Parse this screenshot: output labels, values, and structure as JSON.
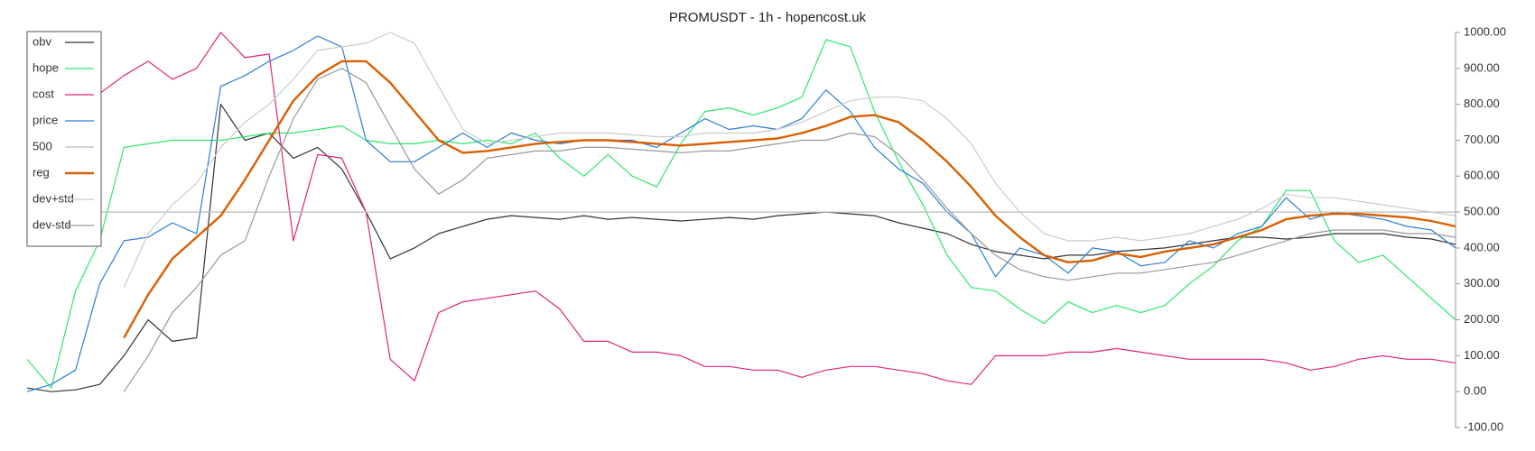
{
  "chart_data": {
    "type": "line",
    "title": "PROMUSDT - 1h - hopencost.uk",
    "categories": [
      null,
      null,
      null,
      null,
      null,
      null,
      null,
      null,
      null,
      null,
      null,
      null,
      null,
      null,
      null,
      null,
      null,
      null,
      null,
      null,
      null,
      null,
      null,
      null,
      null,
      null,
      null,
      null,
      null,
      null,
      null,
      null,
      null,
      null,
      null,
      null,
      null,
      null,
      null,
      null,
      null,
      null,
      null,
      null,
      null,
      null,
      null,
      null,
      null,
      null,
      null,
      null,
      null,
      null,
      null,
      null,
      null,
      null,
      null,
      null
    ],
    "ylim": [
      -100,
      1000
    ],
    "yticks": [
      {
        "value": -100,
        "label": "-100.00"
      },
      {
        "value": 0,
        "label": "0.00"
      },
      {
        "value": 100,
        "label": "100.00"
      },
      {
        "value": 200,
        "label": "200.00"
      },
      {
        "value": 300,
        "label": "300.00"
      },
      {
        "value": 400,
        "label": "400.00"
      },
      {
        "value": 500,
        "label": "500.00"
      },
      {
        "value": 600,
        "label": "600.00"
      },
      {
        "value": 700,
        "label": "700.00"
      },
      {
        "value": 800,
        "label": "800.00"
      },
      {
        "value": 900,
        "label": "900.00"
      },
      {
        "value": 1000,
        "label": "1000.00"
      }
    ],
    "legend": "upper left",
    "series": [
      {
        "name": "obv",
        "color": "#333333",
        "width": 1.2,
        "values": [
          10,
          0,
          5,
          20,
          100,
          200,
          140,
          150,
          800,
          700,
          720,
          650,
          680,
          620,
          500,
          370,
          400,
          440,
          460,
          480,
          490,
          485,
          480,
          490,
          480,
          485,
          480,
          475,
          480,
          485,
          480,
          490,
          495,
          500,
          495,
          490,
          470,
          455,
          440,
          410,
          390,
          380,
          370,
          380,
          380,
          390,
          395,
          400,
          410,
          420,
          430,
          430,
          425,
          430,
          440,
          440,
          440,
          430,
          425,
          410
        ]
      },
      {
        "name": "hope",
        "color": "#2ee66e",
        "width": 1.2,
        "values": [
          90,
          10,
          280,
          420,
          680,
          690,
          700,
          700,
          700,
          710,
          720,
          720,
          730,
          740,
          700,
          690,
          690,
          700,
          690,
          700,
          690,
          720,
          650,
          600,
          660,
          600,
          570,
          690,
          780,
          790,
          770,
          790,
          820,
          980,
          960,
          780,
          640,
          520,
          380,
          290,
          280,
          230,
          190,
          250,
          220,
          240,
          220,
          240,
          300,
          350,
          420,
          460,
          560,
          560,
          420,
          360,
          380,
          320,
          260,
          200
        ]
      },
      {
        "name": "cost",
        "color": "#e0267d",
        "width": 1.2,
        "values": [
          null,
          null,
          null,
          830,
          880,
          920,
          870,
          900,
          1000,
          930,
          940,
          420,
          660,
          650,
          500,
          90,
          30,
          220,
          250,
          260,
          270,
          280,
          230,
          140,
          140,
          110,
          110,
          100,
          70,
          70,
          60,
          60,
          40,
          60,
          70,
          70,
          60,
          50,
          30,
          20,
          100,
          100,
          100,
          110,
          110,
          120,
          110,
          100,
          90,
          90,
          90,
          90,
          80,
          60,
          70,
          90,
          100,
          90,
          90,
          80
        ]
      },
      {
        "name": "price",
        "color": "#2a7fd4",
        "width": 1.2,
        "values": [
          0,
          20,
          60,
          300,
          420,
          430,
          470,
          440,
          850,
          880,
          920,
          950,
          990,
          960,
          700,
          640,
          640,
          680,
          720,
          680,
          720,
          700,
          690,
          700,
          700,
          700,
          680,
          720,
          760,
          730,
          740,
          730,
          760,
          840,
          780,
          680,
          620,
          580,
          500,
          440,
          320,
          400,
          380,
          330,
          400,
          390,
          350,
          360,
          420,
          400,
          440,
          460,
          540,
          480,
          500,
          490,
          480,
          460,
          450,
          400
        ]
      },
      {
        "name": "500",
        "color": "#bbbbbb",
        "width": 1.2,
        "values": [
          500,
          500,
          500,
          500,
          500,
          500,
          500,
          500,
          500,
          500,
          500,
          500,
          500,
          500,
          500,
          500,
          500,
          500,
          500,
          500,
          500,
          500,
          500,
          500,
          500,
          500,
          500,
          500,
          500,
          500,
          500,
          500,
          500,
          500,
          500,
          500,
          500,
          500,
          500,
          500,
          500,
          500,
          500,
          500,
          500,
          500,
          500,
          500,
          500,
          500,
          500,
          500,
          500,
          500,
          500,
          500,
          500,
          500,
          500,
          500
        ]
      },
      {
        "name": "reg",
        "color": "#d95f02",
        "width": 2.4,
        "values": [
          null,
          null,
          null,
          null,
          150,
          270,
          370,
          430,
          490,
          590,
          700,
          810,
          880,
          920,
          920,
          860,
          780,
          700,
          665,
          670,
          680,
          690,
          695,
          700,
          700,
          695,
          690,
          685,
          690,
          695,
          700,
          705,
          720,
          740,
          765,
          770,
          750,
          700,
          640,
          570,
          490,
          430,
          380,
          360,
          365,
          385,
          375,
          390,
          400,
          410,
          430,
          450,
          480,
          490,
          495,
          495,
          490,
          485,
          475,
          460
        ]
      },
      {
        "name": "dev+std",
        "color": "#cccccc",
        "width": 1.2,
        "values": [
          null,
          null,
          null,
          null,
          290,
          440,
          520,
          580,
          680,
          750,
          800,
          870,
          950,
          960,
          970,
          1000,
          970,
          850,
          730,
          690,
          700,
          710,
          720,
          720,
          720,
          715,
          710,
          710,
          720,
          720,
          720,
          730,
          750,
          780,
          810,
          820,
          820,
          810,
          760,
          690,
          580,
          500,
          440,
          420,
          420,
          430,
          420,
          430,
          440,
          460,
          480,
          510,
          550,
          540,
          540,
          530,
          520,
          510,
          500,
          490
        ]
      },
      {
        "name": "dev-std",
        "color": "#999999",
        "width": 1.2,
        "values": [
          null,
          null,
          null,
          null,
          0,
          100,
          220,
          290,
          380,
          420,
          600,
          760,
          870,
          900,
          860,
          740,
          620,
          550,
          590,
          650,
          660,
          670,
          670,
          680,
          680,
          675,
          670,
          665,
          670,
          670,
          680,
          690,
          700,
          700,
          720,
          710,
          660,
          590,
          510,
          440,
          380,
          340,
          320,
          310,
          320,
          330,
          330,
          340,
          350,
          360,
          380,
          400,
          420,
          440,
          450,
          450,
          450,
          440,
          440,
          430
        ]
      }
    ]
  }
}
